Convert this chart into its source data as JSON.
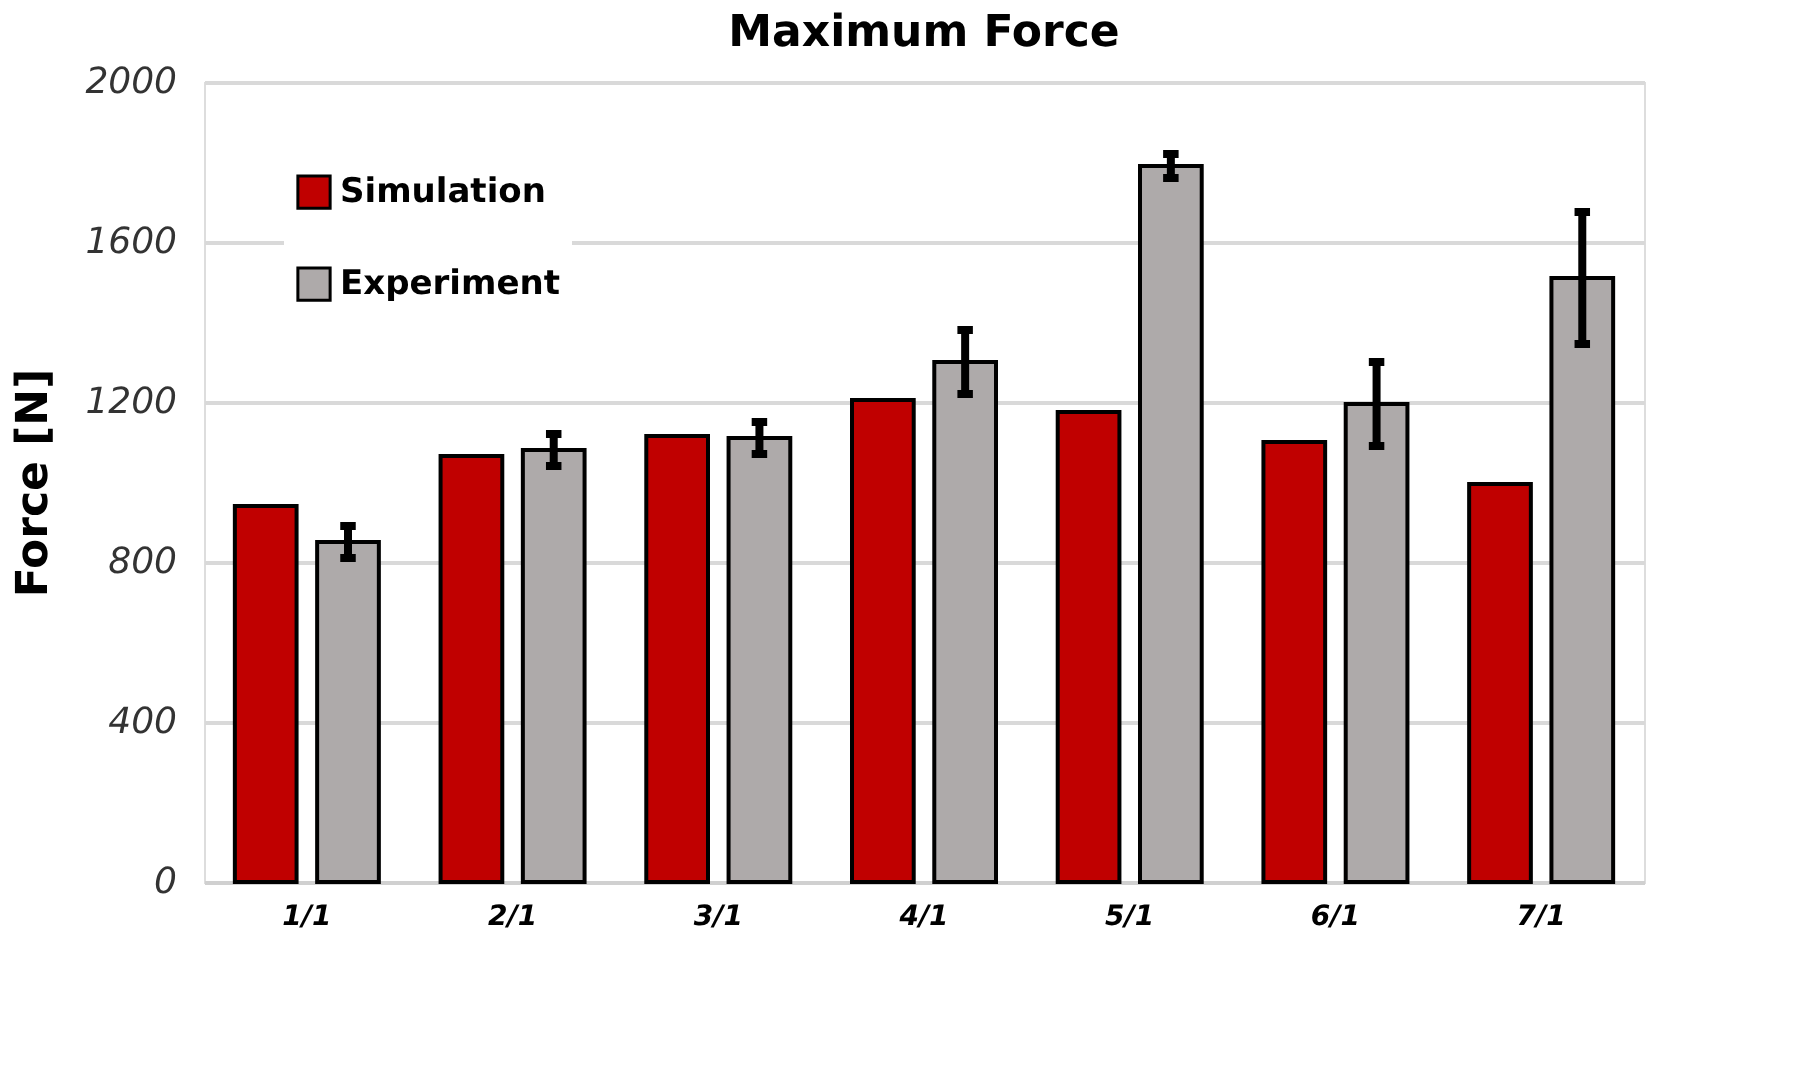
{
  "chart_data": {
    "type": "bar",
    "title": "Maximum Force",
    "ylabel": "Force [N]",
    "categories": [
      "1/1",
      "2/1",
      "3/1",
      "4/1",
      "5/1",
      "6/1",
      "7/1"
    ],
    "series": [
      {
        "name": "Simulation",
        "color": "#c00000",
        "values": [
          940,
          1065,
          1115,
          1205,
          1175,
          1100,
          995
        ]
      },
      {
        "name": "Experiment",
        "color": "#aeaaaa",
        "values": [
          850,
          1080,
          1110,
          1300,
          1790,
          1195,
          1510
        ],
        "errors": [
          40,
          40,
          40,
          80,
          30,
          105,
          165
        ]
      }
    ],
    "ylim": [
      0,
      2000
    ],
    "yticks": [
      0,
      400,
      800,
      1200,
      1600,
      2000
    ],
    "grid": "y",
    "legend": "top left"
  }
}
